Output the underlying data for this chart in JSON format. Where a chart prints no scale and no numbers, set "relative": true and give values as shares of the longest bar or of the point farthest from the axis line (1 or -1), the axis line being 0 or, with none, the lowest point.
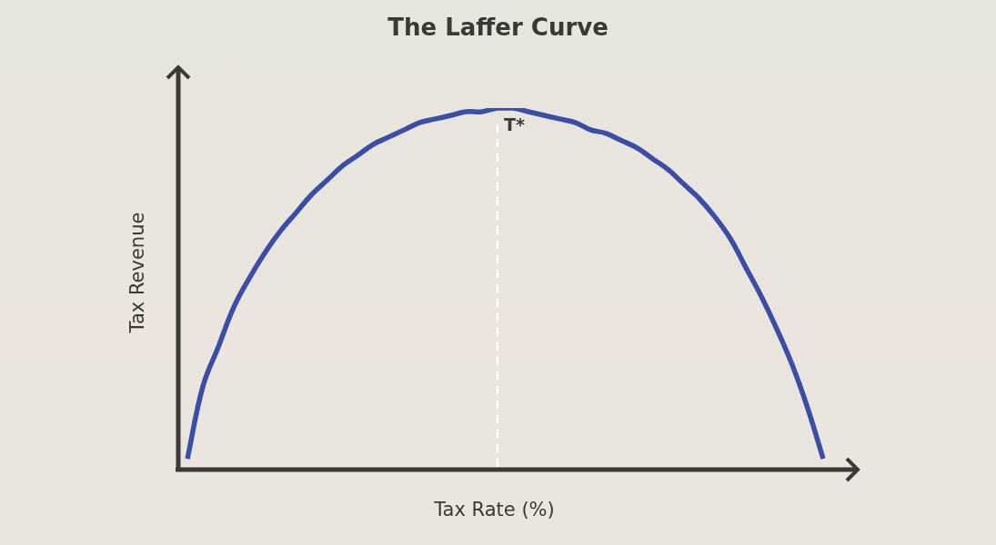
{
  "chart_data": {
    "type": "line",
    "title": "The Laffer Curve",
    "xlabel": "Tax Rate (%)",
    "ylabel": "Tax Revenue",
    "relative": true,
    "marker": "none",
    "categories": [
      null,
      null,
      null,
      null,
      null,
      null,
      null,
      null,
      null,
      null,
      null,
      null,
      null,
      null,
      null,
      null,
      null,
      null,
      null,
      null,
      null,
      null,
      null,
      null,
      null,
      null,
      null,
      null,
      null,
      null,
      null,
      null,
      null,
      null,
      null,
      null,
      null,
      null,
      null,
      null,
      null,
      null
    ],
    "values": [
      0.03,
      0.23,
      0.34,
      0.45,
      0.53,
      0.6,
      0.66,
      0.71,
      0.76,
      0.8,
      0.84,
      0.87,
      0.9,
      0.92,
      0.94,
      0.96,
      0.97,
      0.98,
      0.99,
      0.99,
      1,
      1,
      0.99,
      0.98,
      0.97,
      0.96,
      0.94,
      0.93,
      0.91,
      0.89,
      0.86,
      0.83,
      0.79,
      0.75,
      0.7,
      0.64,
      0.56,
      0.48,
      0.39,
      0.29,
      0.17,
      0.03
    ],
    "color": "#3b4ea6",
    "annotations": [
      {
        "text": "T*",
        "y": 1
      }
    ]
  }
}
